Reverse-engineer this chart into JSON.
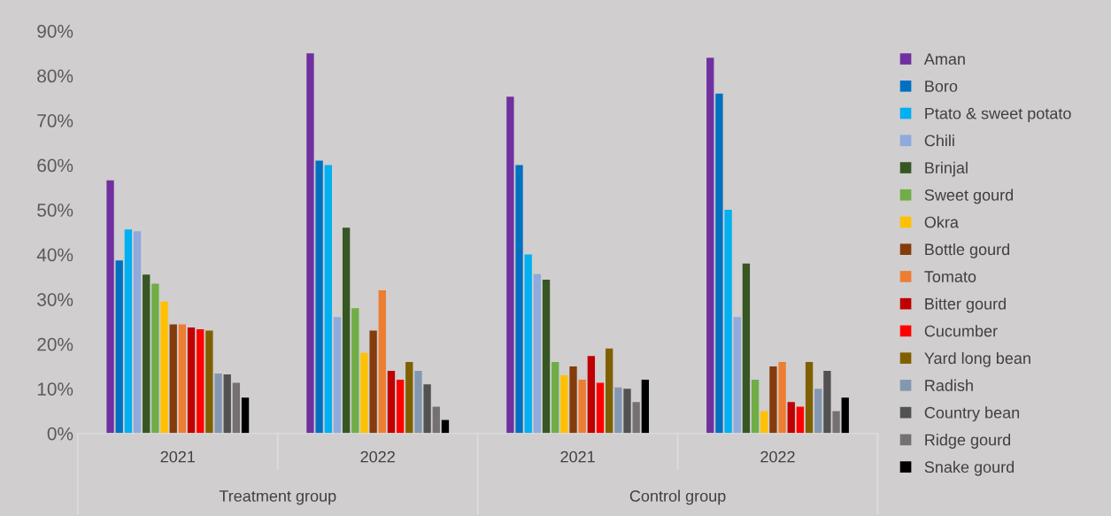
{
  "chart_data": {
    "type": "bar",
    "categories": [
      "2021",
      "2022",
      "2021",
      "2022"
    ],
    "annotations": [
      "Treatment group",
      "Control group"
    ],
    "ylim": [
      0,
      90
    ],
    "yticks": [
      {
        "value": 0,
        "label": "0%"
      },
      {
        "value": 10,
        "label": "10%"
      },
      {
        "value": 20,
        "label": "20%"
      },
      {
        "value": 30,
        "label": "30%"
      },
      {
        "value": 40,
        "label": "40%"
      },
      {
        "value": 50,
        "label": "50%"
      },
      {
        "value": 60,
        "label": "60%"
      },
      {
        "value": 70,
        "label": "70%"
      },
      {
        "value": 80,
        "label": "80%"
      },
      {
        "value": 90,
        "label": "90%"
      }
    ],
    "grid": false,
    "legend": "right",
    "series": [
      {
        "name": "Aman",
        "color": "#7030a0",
        "values": [
          56.6,
          85,
          75.3,
          84
        ]
      },
      {
        "name": "Boro",
        "color": "#0070c0",
        "values": [
          38.7,
          61,
          60,
          76
        ]
      },
      {
        "name": "Ptato & sweet potato",
        "color": "#00b0f0",
        "values": [
          45.6,
          60,
          40,
          50
        ]
      },
      {
        "name": "Chili",
        "color": "#8faadc",
        "values": [
          45.2,
          26,
          35.6,
          26
        ]
      },
      {
        "name": "Brinjal",
        "color": "#375623",
        "values": [
          35.5,
          46,
          34.4,
          38
        ]
      },
      {
        "name": "Sweet gourd",
        "color": "#70ad47",
        "values": [
          33.5,
          28,
          16,
          12
        ]
      },
      {
        "name": "Okra",
        "color": "#ffc000",
        "values": [
          29.5,
          18,
          13,
          5
        ]
      },
      {
        "name": "Bottle gourd",
        "color": "#843c0c",
        "values": [
          24.4,
          23,
          15,
          15
        ]
      },
      {
        "name": "Tomato",
        "color": "#ed7d31",
        "values": [
          24.4,
          32,
          12,
          16
        ]
      },
      {
        "name": "Bitter gourd",
        "color": "#c00000",
        "values": [
          23.7,
          14,
          17.3,
          7
        ]
      },
      {
        "name": "Cucumber",
        "color": "#ff0000",
        "values": [
          23.3,
          12,
          11.3,
          6
        ]
      },
      {
        "name": "Yard long bean",
        "color": "#7f6000",
        "values": [
          23,
          16,
          19,
          16
        ]
      },
      {
        "name": "Radish",
        "color": "#8497b0",
        "values": [
          13.4,
          14,
          10.3,
          10
        ]
      },
      {
        "name": "Country bean",
        "color": "#525252",
        "values": [
          13.2,
          11,
          10,
          14
        ]
      },
      {
        "name": "Ridge gourd",
        "color": "#767171",
        "values": [
          11.3,
          6,
          7,
          5
        ]
      },
      {
        "name": "Snake gourd",
        "color": "#000000",
        "values": [
          8,
          3,
          12,
          8
        ]
      }
    ]
  }
}
